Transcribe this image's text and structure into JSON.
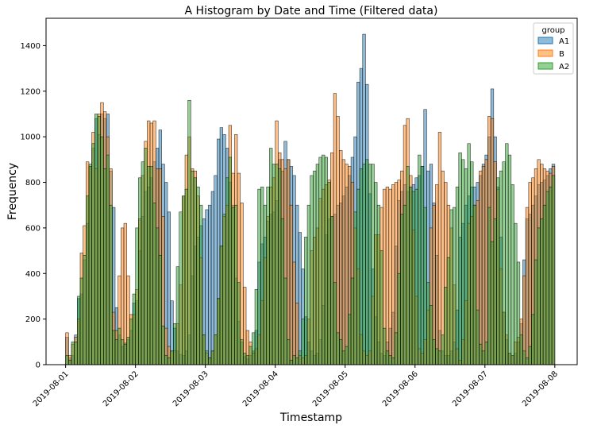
{
  "chart_data": {
    "type": "bar",
    "title": "A Histogram by Date and Time (Filtered data)",
    "xlabel": "Timestamp",
    "ylabel": "Frequency",
    "x_tick_labels": [
      "2019-08-01",
      "2019-08-02",
      "2019-08-03",
      "2019-08-04",
      "2019-08-05",
      "2019-08-06",
      "2019-08-07",
      "2019-08-08"
    ],
    "y_ticks": [
      0,
      200,
      400,
      600,
      800,
      1000,
      1200,
      1400
    ],
    "y_tick_labels": [
      "0",
      "200",
      "400",
      "600",
      "800",
      "1000",
      "1200",
      "1400"
    ],
    "ylim": [
      0,
      1520
    ],
    "x_domain_days": [
      -0.28,
      7.32
    ],
    "bins_per_day": 24,
    "legend": {
      "title": "group",
      "placement": "top-right"
    },
    "series": [
      {
        "name": "A1",
        "color": "#1f77b4",
        "values": [
          120,
          30,
          40,
          130,
          290,
          310,
          460,
          620,
          870,
          950,
          1080,
          1010,
          1100,
          1080,
          1100,
          850,
          690,
          250,
          130,
          80,
          95,
          110,
          150,
          270,
          280,
          500,
          650,
          760,
          780,
          820,
          890,
          950,
          1030,
          880,
          800,
          670,
          280,
          160,
          60,
          45,
          40,
          60,
          130,
          390,
          520,
          560,
          610,
          640,
          680,
          700,
          760,
          830,
          990,
          1040,
          1010,
          950,
          800,
          700,
          380,
          190,
          100,
          35,
          25,
          40,
          60,
          150,
          450,
          530,
          560,
          630,
          660,
          670,
          720,
          900,
          850,
          980,
          900,
          870,
          830,
          700,
          580,
          420,
          210,
          100,
          60,
          40,
          50,
          110,
          260,
          570,
          640,
          650,
          660,
          700,
          710,
          740,
          780,
          830,
          910,
          1000,
          1240,
          1300,
          1450,
          1230,
          750,
          420,
          210,
          100,
          50,
          40,
          100,
          160,
          230,
          520,
          720,
          760,
          790,
          760,
          780,
          790,
          820,
          830,
          870,
          1120,
          850,
          880,
          710,
          480,
          150,
          60,
          40,
          40,
          60,
          100,
          240,
          560,
          620,
          700,
          740,
          780,
          780,
          800,
          830,
          880,
          920,
          1000,
          1210,
          1000,
          780,
          560,
          230,
          110,
          50,
          40,
          50,
          100,
          180,
          460,
          640,
          660,
          700,
          740,
          790,
          800,
          810,
          830,
          860,
          880
        ]
      },
      {
        "name": "B",
        "color": "#ff7f0e",
        "values": [
          140,
          40,
          90,
          120,
          200,
          490,
          610,
          890,
          870,
          1020,
          860,
          1100,
          1150,
          1110,
          1000,
          860,
          230,
          150,
          390,
          600,
          620,
          390,
          220,
          220,
          330,
          640,
          830,
          980,
          1070,
          1060,
          1070,
          860,
          860,
          650,
          160,
          80,
          60,
          60,
          180,
          350,
          740,
          920,
          1000,
          860,
          850,
          740,
          470,
          130,
          50,
          30,
          60,
          130,
          290,
          520,
          650,
          700,
          1050,
          840,
          1010,
          840,
          710,
          340,
          150,
          100,
          50,
          70,
          130,
          280,
          470,
          650,
          780,
          820,
          1070,
          930,
          900,
          860,
          900,
          700,
          450,
          270,
          40,
          30,
          40,
          200,
          500,
          560,
          600,
          730,
          770,
          790,
          810,
          930,
          1190,
          1090,
          940,
          900,
          880,
          870,
          800,
          600,
          420,
          130,
          60,
          40,
          60,
          300,
          570,
          570,
          690,
          770,
          780,
          770,
          790,
          800,
          810,
          850,
          1050,
          1080,
          830,
          590,
          300,
          70,
          50,
          110,
          240,
          600,
          700,
          790,
          1020,
          850,
          800,
          700,
          600,
          350,
          70,
          20,
          110,
          280,
          620,
          650,
          700,
          720,
          850,
          870,
          900,
          1090,
          1080,
          890,
          770,
          420,
          230,
          130,
          50,
          40,
          100,
          120,
          200,
          390,
          690,
          800,
          820,
          860,
          900,
          880,
          860,
          850,
          840,
          870
        ]
      },
      {
        "name": "A2",
        "color": "#2ca02c",
        "values": [
          40,
          20,
          100,
          100,
          300,
          380,
          480,
          740,
          880,
          970,
          1100,
          1090,
          1000,
          860,
          920,
          700,
          150,
          110,
          160,
          110,
          90,
          120,
          200,
          310,
          600,
          820,
          890,
          950,
          870,
          870,
          710,
          600,
          480,
          170,
          40,
          30,
          60,
          180,
          430,
          670,
          740,
          770,
          1160,
          850,
          820,
          780,
          700,
          130,
          60,
          30,
          60,
          130,
          290,
          520,
          660,
          820,
          910,
          690,
          700,
          360,
          110,
          50,
          40,
          80,
          140,
          330,
          770,
          780,
          700,
          780,
          950,
          880,
          880,
          860,
          640,
          380,
          110,
          20,
          40,
          30,
          60,
          200,
          560,
          700,
          830,
          850,
          880,
          910,
          920,
          910,
          800,
          650,
          360,
          140,
          110,
          60,
          80,
          220,
          380,
          670,
          770,
          860,
          880,
          900,
          880,
          880,
          800,
          700,
          500,
          160,
          60,
          40,
          30,
          140,
          400,
          660,
          700,
          870,
          780,
          760,
          770,
          920,
          870,
          690,
          360,
          260,
          110,
          70,
          60,
          130,
          340,
          470,
          680,
          690,
          780,
          930,
          900,
          860,
          970,
          890,
          700,
          240,
          90,
          60,
          100,
          690,
          540,
          640,
          820,
          850,
          890,
          970,
          920,
          790,
          620,
          450,
          130,
          60,
          30,
          80,
          220,
          460,
          600,
          640,
          700,
          760,
          780,
          830
        ]
      }
    ]
  }
}
